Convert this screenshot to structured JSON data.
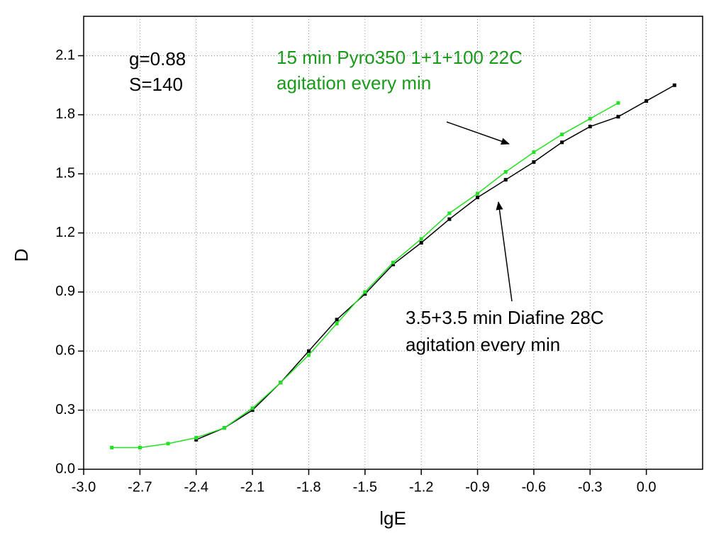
{
  "chart_data": {
    "type": "line",
    "x_label": "lgE",
    "y_label": "D",
    "xlim": [
      -3.0,
      0.3
    ],
    "ylim": [
      0,
      2.3
    ],
    "xticks": [
      {
        "value": -3,
        "label": "-3.0"
      },
      -2.7,
      -2.4,
      -2.1,
      -1.8,
      -1.5,
      -1.2,
      -0.9,
      -0.6,
      -0.3,
      {
        "value": 0,
        "label": "0.0"
      }
    ],
    "yticks": [
      {
        "value": 0,
        "label": "0.0"
      },
      0.3,
      0.6,
      0.9,
      1.2,
      1.5,
      1.8,
      2.1
    ],
    "grid": true,
    "series": [
      {
        "color": "#000000",
        "x": [
          -2.4,
          -2.25,
          -2.1,
          -1.95,
          -1.8,
          -1.65,
          -1.5,
          -1.35,
          -1.2,
          -1.05,
          -0.9,
          -0.75,
          -0.6,
          -0.45,
          -0.3,
          -0.15,
          0.0,
          0.15
        ],
        "values": [
          0.15,
          0.21,
          0.3,
          0.44,
          0.6,
          0.76,
          0.89,
          1.04,
          1.15,
          1.27,
          1.38,
          1.47,
          1.56,
          1.66,
          1.74,
          1.79,
          1.87,
          1.95
        ]
      },
      {
        "color": "#22e022",
        "x": [
          -2.85,
          -2.7,
          -2.55,
          -2.4,
          -2.25,
          -2.1,
          -1.95,
          -1.8,
          -1.65,
          -1.5,
          -1.35,
          -1.2,
          -1.05,
          -0.9,
          -0.75,
          -0.6,
          -0.45,
          -0.3,
          -0.15
        ],
        "values": [
          0.11,
          0.11,
          0.13,
          0.16,
          0.21,
          0.31,
          0.44,
          0.58,
          0.74,
          0.9,
          1.05,
          1.17,
          1.3,
          1.4,
          1.51,
          1.61,
          1.7,
          1.78,
          1.86
        ]
      }
    ],
    "annotations": {
      "g": "g=0.88",
      "s": "S=140",
      "green_line1": "15 min  Pyro350 1+1+100 22C",
      "green_line2": "agitation every min",
      "black_line1": "3.5+3.5 min Diafine 28C",
      "black_line2": "agitation every min"
    }
  }
}
